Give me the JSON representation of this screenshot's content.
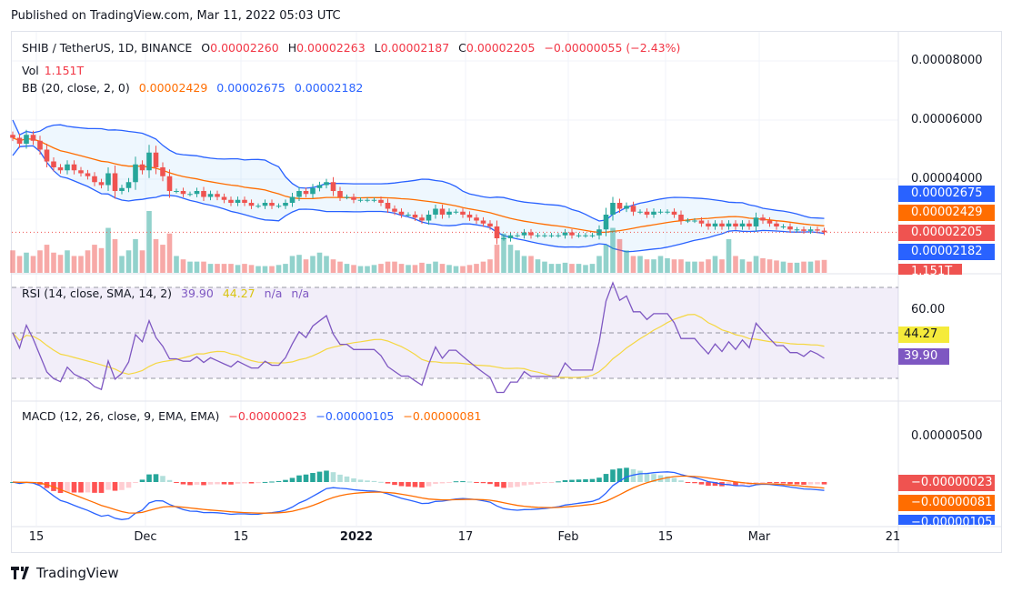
{
  "published": "Published on TradingView.com, Mar 11, 2022 05:03 UTC",
  "header": {
    "symbol": "SHIB / TetherUS, 1D, BINANCE",
    "o_label": "O",
    "open": "0.00002260",
    "h_label": "H",
    "high": "0.00002263",
    "l_label": "L",
    "low": "0.00002187",
    "c_label": "C",
    "close": "0.00002205",
    "change": "−0.00000055 (−2.43%)"
  },
  "vol": {
    "label": "Vol",
    "value": "1.151T"
  },
  "bb": {
    "label": "BB (20, close, 2, 0)",
    "basis": "0.00002429",
    "upper": "0.00002675",
    "lower": "0.00002182"
  },
  "rsi": {
    "label": "RSI (14, close, SMA, 14, 2)",
    "rsi": "39.90",
    "sma": "44.27",
    "extra1": "n/a",
    "extra2": "n/a"
  },
  "macd": {
    "label": "MACD (12, 26, close, 9, EMA, EMA)",
    "hist": "−0.00000023",
    "macd": "−0.00000105",
    "signal": "−0.00000081"
  },
  "price_axis": [
    "0.00008000",
    "0.00006000",
    "0.00004000"
  ],
  "price_tags": {
    "upper": "0.00002675",
    "basis": "0.00002429",
    "last": "0.00002205",
    "lower": "0.00002182",
    "vol": "1.151T"
  },
  "rsi_axis": [
    "60.00"
  ],
  "rsi_tags": {
    "sma": "44.27",
    "rsi": "39.90"
  },
  "macd_axis": [
    "0.00000500"
  ],
  "macd_tags": {
    "hist": "−0.00000023",
    "signal": "−0.00000081",
    "macd": "−0.00000105"
  },
  "time_axis": [
    "15",
    "Dec",
    "15",
    "2022",
    "17",
    "Feb",
    "15",
    "Mar",
    "21"
  ],
  "footer": {
    "brand": "TradingView"
  },
  "colors": {
    "up": "#26a69a",
    "down": "#ef5350",
    "bb_basis": "#ff6d00",
    "bb_band": "#2962ff",
    "rsi": "#7e57c2",
    "rsi_sma": "#f5d742",
    "macd": "#2962ff",
    "signal": "#ff6d00"
  },
  "chart_data": {
    "type": "candlestick",
    "start_date": "2021-11-11",
    "interval": "1D",
    "close_x1e5": [
      5.4,
      5.2,
      5.5,
      5.3,
      5.0,
      4.6,
      4.4,
      4.3,
      4.5,
      4.3,
      4.2,
      4.1,
      3.9,
      3.8,
      4.2,
      3.6,
      3.7,
      3.9,
      4.5,
      4.3,
      4.9,
      4.4,
      4.1,
      3.6,
      3.6,
      3.5,
      3.5,
      3.6,
      3.4,
      3.5,
      3.4,
      3.3,
      3.2,
      3.3,
      3.2,
      3.1,
      3.1,
      3.2,
      3.1,
      3.1,
      3.2,
      3.4,
      3.6,
      3.5,
      3.7,
      3.8,
      3.9,
      3.6,
      3.4,
      3.4,
      3.3,
      3.3,
      3.3,
      3.3,
      3.2,
      3.0,
      2.9,
      2.8,
      2.8,
      2.7,
      2.6,
      2.8,
      3.0,
      2.8,
      2.9,
      2.9,
      2.8,
      2.7,
      2.6,
      2.5,
      2.4,
      2.0,
      2.0,
      2.1,
      2.1,
      2.2,
      2.1,
      2.1,
      2.1,
      2.1,
      2.1,
      2.2,
      2.1,
      2.1,
      2.1,
      2.1,
      2.3,
      2.8,
      3.2,
      3.0,
      3.1,
      2.9,
      2.9,
      2.8,
      2.9,
      2.9,
      2.9,
      2.8,
      2.6,
      2.6,
      2.6,
      2.5,
      2.4,
      2.5,
      2.4,
      2.5,
      2.4,
      2.5,
      2.4,
      2.7,
      2.6,
      2.5,
      2.4,
      2.4,
      2.3,
      2.3,
      2.25,
      2.3,
      2.26,
      2.205
    ],
    "volume_T": [
      2,
      1.5,
      1.8,
      1.5,
      2,
      2.5,
      1.8,
      1.6,
      2,
      1.5,
      1.5,
      2,
      2.5,
      2.2,
      4,
      3,
      1.5,
      2,
      3,
      2,
      5.5,
      3,
      2.5,
      3.5,
      1.5,
      1.2,
      1,
      1,
      1,
      0.8,
      0.8,
      0.8,
      0.8,
      0.7,
      0.8,
      0.7,
      0.6,
      0.6,
      0.6,
      0.7,
      0.8,
      1.5,
      1.6,
      1.2,
      1.5,
      1.8,
      1.5,
      1.2,
      1,
      0.8,
      0.7,
      0.6,
      0.6,
      0.7,
      0.8,
      1,
      1,
      0.8,
      0.7,
      0.7,
      0.9,
      0.8,
      1,
      0.8,
      0.7,
      0.6,
      0.6,
      0.7,
      0.8,
      1,
      1.2,
      2.5,
      3.5,
      2.5,
      2,
      1.5,
      1.5,
      1.2,
      1,
      0.8,
      0.8,
      0.9,
      0.8,
      0.8,
      0.7,
      0.8,
      1.5,
      2.5,
      4,
      3,
      2,
      1.5,
      1.5,
      1.2,
      1.2,
      1.5,
      1.3,
      1.2,
      1.2,
      1,
      1,
      1,
      1.2,
      1.5,
      1.2,
      3,
      1.5,
      1.2,
      1,
      1.5,
      1.3,
      1.2,
      1.1,
      1,
      0.9,
      0.9,
      1,
      1,
      1.1,
      1.151
    ],
    "price_range_x1e5": [
      1.5,
      9.0
    ]
  }
}
